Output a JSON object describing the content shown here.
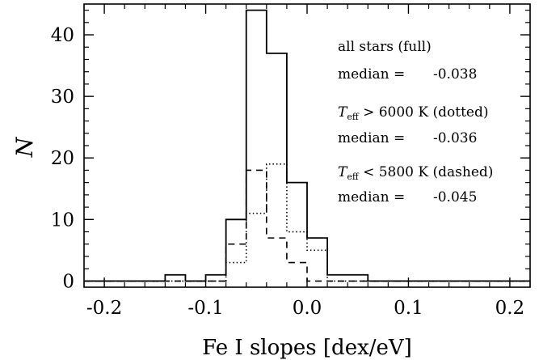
{
  "chart_data": {
    "type": "histogram",
    "xlabel": "Fe I slopes [dex/eV]",
    "ylabel": "N",
    "xlim": [
      -0.22,
      0.22
    ],
    "ylim": [
      -1,
      45
    ],
    "xticks": [
      "-0.2",
      "-0.1",
      "0.0",
      "0.1",
      "0.2"
    ],
    "yticks": [
      "0",
      "10",
      "20",
      "30",
      "40"
    ],
    "bin_edges": [
      -0.22,
      -0.14,
      -0.12,
      -0.1,
      -0.08,
      -0.06,
      -0.04,
      -0.02,
      0.0,
      0.02,
      0.06,
      0.22
    ],
    "series": [
      {
        "style": "solid",
        "values": [
          0,
          1,
          0,
          1,
          10,
          44,
          37,
          16,
          7,
          1,
          0
        ]
      },
      {
        "style": "dotted",
        "values": [
          0,
          0,
          0,
          0,
          3,
          11,
          19,
          8,
          5,
          0,
          0
        ]
      },
      {
        "style": "dashed",
        "values": [
          0,
          0,
          0,
          0,
          6,
          18,
          7,
          3,
          0,
          0,
          0
        ]
      }
    ],
    "annotations": [
      {
        "label": "all stars (full)",
        "median_label": "median =",
        "median": "-0.038"
      },
      {
        "label_T": "T",
        "label_sub": "eff",
        "label_rest": " > 6000 K (dotted)",
        "median_label": "median =",
        "median": "-0.036"
      },
      {
        "label_T": "T",
        "label_sub": "eff",
        "label_rest": " < 5800 K (dashed)",
        "median_label": "median =",
        "median": "-0.045"
      }
    ]
  }
}
